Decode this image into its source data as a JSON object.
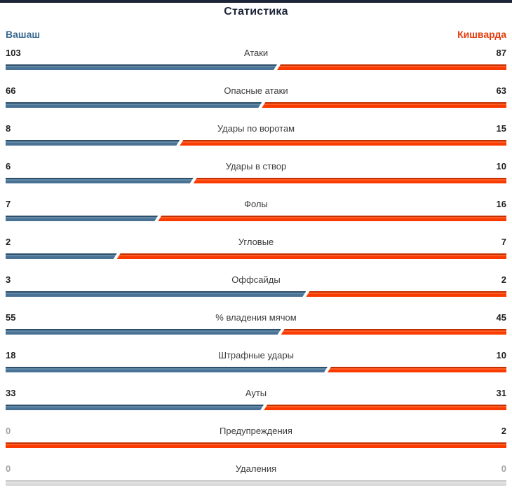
{
  "header": {
    "title": "Статистика",
    "home_team": "Вашаш",
    "away_team": "Кишварда"
  },
  "colors": {
    "accent_navy": "#1c2438",
    "home_name": "#3a6a91",
    "away_name": "#e63b0c",
    "home_bar": "#4a7294",
    "away_bar": "#f93b00",
    "neutral_bar": "#d9d9d9",
    "zero_value_text": "#a3a3a3",
    "value_text": "#1f1f1f",
    "label_text": "#3c3c3c"
  },
  "stats": {
    "rows": [
      {
        "label": "Атаки",
        "home": 103,
        "away": 87
      },
      {
        "label": "Опасные атаки",
        "home": 66,
        "away": 63
      },
      {
        "label": "Удары по воротам",
        "home": 8,
        "away": 15
      },
      {
        "label": "Удары в створ",
        "home": 6,
        "away": 10
      },
      {
        "label": "Фолы",
        "home": 7,
        "away": 16
      },
      {
        "label": "Угловые",
        "home": 2,
        "away": 7
      },
      {
        "label": "Оффсайды",
        "home": 3,
        "away": 2
      },
      {
        "label": "% владения мячом",
        "home": 55,
        "away": 45
      },
      {
        "label": "Штрафные удары",
        "home": 18,
        "away": 10
      },
      {
        "label": "Ауты",
        "home": 33,
        "away": 31
      },
      {
        "label": "Предупреждения",
        "home": 0,
        "away": 2
      },
      {
        "label": "Удаления",
        "home": 0,
        "away": 0
      }
    ]
  },
  "chart_data": {
    "type": "bar",
    "title": "Статистика",
    "orientation": "horizontal-paired",
    "categories": [
      "Атаки",
      "Опасные атаки",
      "Удары по воротам",
      "Удары в створ",
      "Фолы",
      "Угловые",
      "Оффсайды",
      "% владения мячом",
      "Штрафные удары",
      "Ауты",
      "Предупреждения",
      "Удаления"
    ],
    "series": [
      {
        "name": "Вашаш",
        "color": "#4a7294",
        "values": [
          103,
          66,
          8,
          6,
          7,
          2,
          3,
          55,
          18,
          33,
          0,
          0
        ]
      },
      {
        "name": "Кишварда",
        "color": "#f93b00",
        "values": [
          87,
          63,
          15,
          10,
          16,
          7,
          2,
          45,
          10,
          31,
          2,
          0
        ]
      }
    ],
    "value_labels": true,
    "legend_position": "top",
    "note": "Each row is a single bar split proportionally between the two teams; gray bar when both values are 0."
  }
}
